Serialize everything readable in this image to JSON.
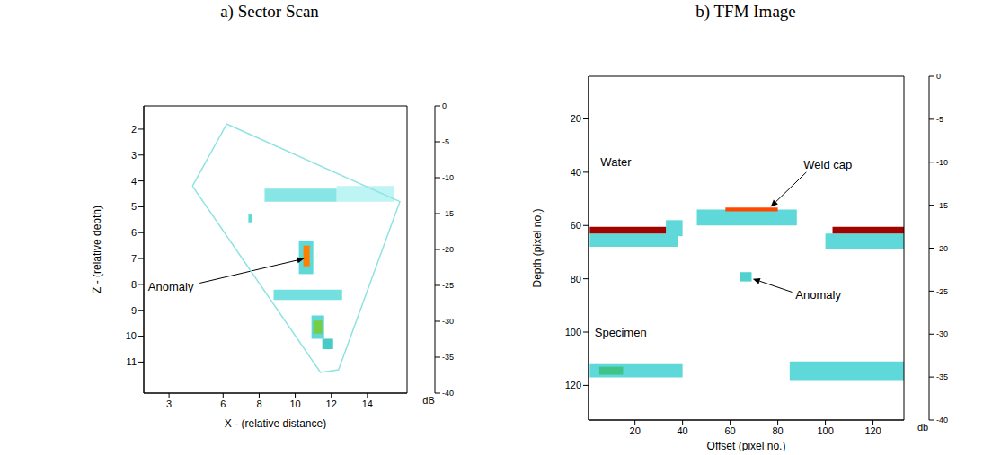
{
  "chart_data": [
    {
      "type": "heatmap",
      "title": "a) Sector Scan",
      "x_label": "X - (relative distance)",
      "y_label": "Z - (relative depth)",
      "xlim": [
        1.6,
        16.2
      ],
      "xticks": [
        3,
        6,
        8,
        10,
        12,
        14
      ],
      "ylim": [
        1.1,
        12.2
      ],
      "yticks": [
        2,
        3,
        4,
        5,
        6,
        7,
        8,
        9,
        10,
        11
      ],
      "outline": [
        [
          4.3,
          4.2
        ],
        [
          6.2,
          1.8
        ],
        [
          15.8,
          4.8
        ],
        [
          12.4,
          11.3
        ],
        [
          11.4,
          11.4
        ],
        [
          4.3,
          4.2
        ]
      ],
      "cells": [
        {
          "x": [
            8.3,
            12.3
          ],
          "y": [
            4.3,
            4.8
          ],
          "value": -32
        },
        {
          "x": [
            12.3,
            15.5
          ],
          "y": [
            4.2,
            4.8
          ],
          "value": -35
        },
        {
          "x": [
            8.8,
            12.6
          ],
          "y": [
            8.2,
            8.6
          ],
          "value": -31
        },
        {
          "x": [
            10.2,
            11.0
          ],
          "y": [
            6.3,
            7.6
          ],
          "value": -30
        },
        {
          "x": [
            10.45,
            10.8
          ],
          "y": [
            6.5,
            7.3
          ],
          "value": -8
        },
        {
          "x": [
            10.9,
            11.6
          ],
          "y": [
            9.2,
            10.1
          ],
          "value": -30
        },
        {
          "x": [
            11.0,
            11.5
          ],
          "y": [
            9.4,
            9.9
          ],
          "value": -18
        },
        {
          "x": [
            11.5,
            12.1
          ],
          "y": [
            10.1,
            10.5
          ],
          "value": -26
        },
        {
          "x": [
            7.4,
            7.6
          ],
          "y": [
            5.3,
            5.6
          ],
          "value": -30
        }
      ],
      "annotations": [
        {
          "text": "Anomaly",
          "x": 3.1,
          "y": 8.1,
          "arrow": [
            [
              4.7,
              7.95
            ],
            [
              10.5,
              7.0
            ]
          ]
        }
      ],
      "colorbar": {
        "range": [
          -40,
          0
        ],
        "ticks": [
          0,
          -5,
          -10,
          -15,
          -20,
          -25,
          -30,
          -35,
          -40
        ],
        "label": "dB"
      }
    },
    {
      "type": "heatmap",
      "title": "b) TFM Image",
      "x_label": "Offset (pixel no.)",
      "y_label": "Depth (pixel no.)",
      "xlim": [
        0.5,
        133
      ],
      "xticks": [
        20,
        40,
        60,
        80,
        100,
        120
      ],
      "ylim": [
        4,
        133
      ],
      "yticks": [
        20,
        40,
        60,
        80,
        100,
        120
      ],
      "cells": [
        {
          "x": [
            1,
            38
          ],
          "y": [
            63,
            68
          ],
          "value": -30
        },
        {
          "x": [
            33,
            40
          ],
          "y": [
            58,
            64
          ],
          "value": -30
        },
        {
          "x": [
            1,
            33
          ],
          "y": [
            60.5,
            63
          ],
          "value": -1
        },
        {
          "x": [
            100,
            133
          ],
          "y": [
            63,
            69
          ],
          "value": -30
        },
        {
          "x": [
            103,
            133
          ],
          "y": [
            60.5,
            63
          ],
          "value": -1
        },
        {
          "x": [
            46,
            88
          ],
          "y": [
            54,
            60
          ],
          "value": -30
        },
        {
          "x": [
            58,
            80
          ],
          "y": [
            53.3,
            54.7
          ],
          "value": -6
        },
        {
          "x": [
            64,
            69
          ],
          "y": [
            77.5,
            81
          ],
          "value": -28
        },
        {
          "x": [
            1,
            40
          ],
          "y": [
            112,
            117
          ],
          "value": -30
        },
        {
          "x": [
            5,
            15
          ],
          "y": [
            113,
            116
          ],
          "value": -22
        },
        {
          "x": [
            85,
            133
          ],
          "y": [
            111,
            118
          ],
          "value": -30
        }
      ],
      "annotations": [
        {
          "text": "Water",
          "x": 12,
          "y": 36
        },
        {
          "text": "Weld cap",
          "x": 101,
          "y": 37,
          "arrow": [
            [
              92,
              40
            ],
            [
              77,
              53
            ]
          ]
        },
        {
          "text": "Anomaly",
          "x": 97,
          "y": 86,
          "arrow": [
            [
              86,
              85
            ],
            [
              69.5,
              80
            ]
          ]
        },
        {
          "text": "Specimen",
          "x": 14,
          "y": 100
        }
      ],
      "colorbar": {
        "range": [
          -40,
          0
        ],
        "ticks": [
          0,
          -5,
          -10,
          -15,
          -20,
          -25,
          -30,
          -35,
          -40
        ],
        "label": "db"
      }
    }
  ]
}
